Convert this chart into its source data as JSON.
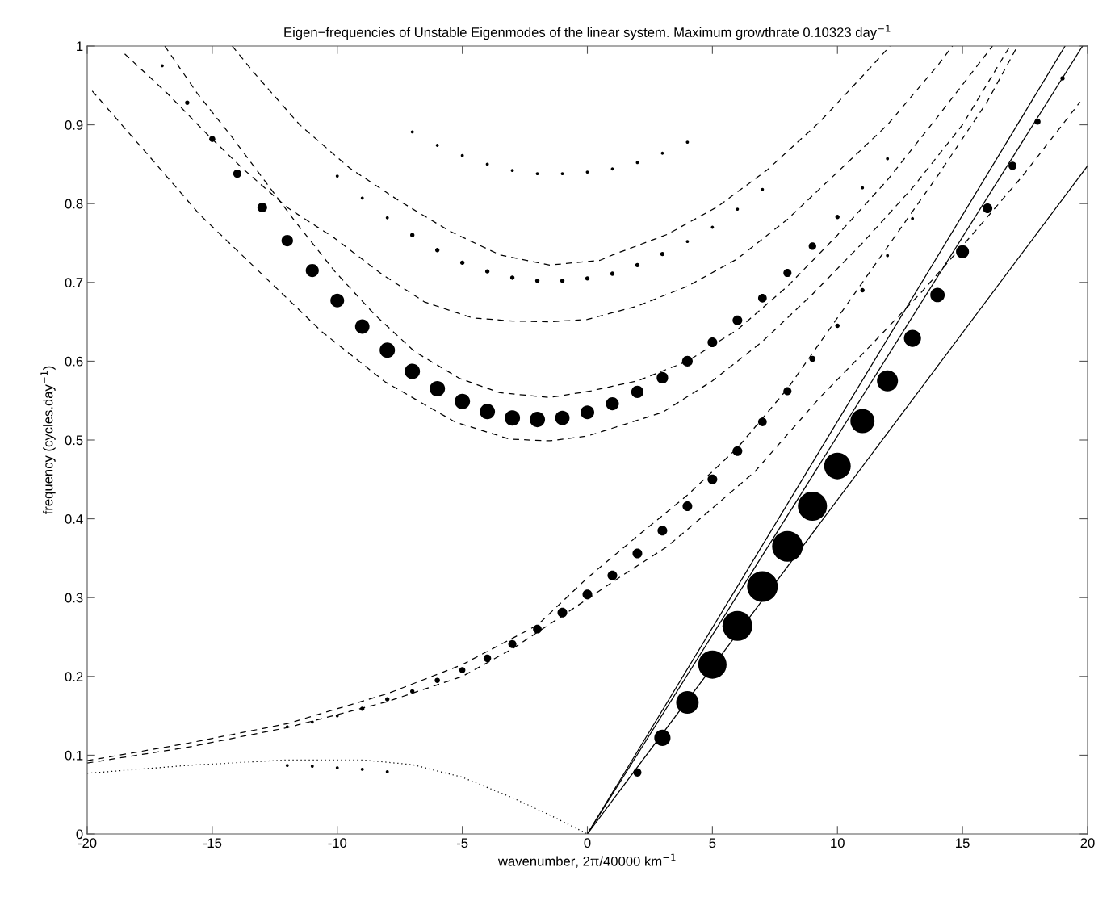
{
  "chart_data": {
    "type": "bubble",
    "title": "Eigen−frequencies of Unstable Eigenmodes of the linear system. Maximum growthrate 0.10323 day$^{−1}$",
    "xlabel": "wavenumber, 2π/40000 km$^{−1}$",
    "ylabel": "frequency (cycles.day$^{−1}$)",
    "xlim": [
      -20,
      20
    ],
    "ylim": [
      0,
      1
    ],
    "xticks": [
      -20,
      -15,
      -10,
      -5,
      0,
      5,
      10,
      15,
      20
    ],
    "yticks": [
      0,
      0.1,
      0.2,
      0.3,
      0.4,
      0.5,
      0.6,
      0.7,
      0.8,
      0.9,
      1
    ],
    "grid": false,
    "series": [
      {
        "type": "line",
        "line_style": "solid",
        "color": "#000000",
        "x": [
          0,
          19.1
        ],
        "values": [
          0,
          1.0
        ]
      },
      {
        "type": "line",
        "line_style": "solid",
        "color": "#000000",
        "x": [
          0,
          19.8
        ],
        "values": [
          0,
          1.0
        ]
      },
      {
        "type": "line",
        "line_style": "solid",
        "color": "#000000",
        "x": [
          0,
          20
        ],
        "values": [
          0,
          0.848
        ]
      },
      {
        "type": "line",
        "line_style": "dashed",
        "color": "#000000",
        "x": [
          -19.8,
          -17.6,
          -15.5,
          -13,
          -10.6,
          -8.1,
          -5.3,
          -3.1,
          -1.5,
          0,
          3,
          5,
          7,
          9,
          11,
          13,
          15,
          16.9
        ],
        "values": [
          0.943,
          0.863,
          0.786,
          0.71,
          0.637,
          0.574,
          0.523,
          0.501,
          0.499,
          0.505,
          0.535,
          0.575,
          0.625,
          0.685,
          0.75,
          0.82,
          0.9,
          1.0
        ]
      },
      {
        "type": "line",
        "line_style": "dashed",
        "color": "#000000",
        "x": [
          -16.9,
          -15.6,
          -14.2,
          -12.9,
          -11.7,
          -10.1,
          -8.5,
          -6.9,
          -5.1,
          -3.5,
          -1.5,
          0.1,
          2,
          4,
          6,
          8,
          10,
          12,
          14,
          16.2
        ],
        "values": [
          1.0,
          0.94,
          0.884,
          0.829,
          0.778,
          0.714,
          0.659,
          0.612,
          0.578,
          0.56,
          0.554,
          0.562,
          0.575,
          0.6,
          0.64,
          0.695,
          0.76,
          0.83,
          0.91,
          1.0
        ]
      },
      {
        "type": "line",
        "line_style": "dashed",
        "color": "#000000",
        "x": [
          -18.5,
          -16.8,
          -15.2,
          -13.8,
          -12,
          -10.1,
          -8.2,
          -6.5,
          -4.6,
          -3,
          -1.5,
          0,
          2,
          4,
          6,
          8,
          10,
          12,
          14,
          14.6
        ],
        "values": [
          0.99,
          0.94,
          0.888,
          0.845,
          0.795,
          0.756,
          0.71,
          0.675,
          0.655,
          0.651,
          0.65,
          0.653,
          0.67,
          0.695,
          0.73,
          0.78,
          0.84,
          0.9,
          0.975,
          1.0
        ]
      },
      {
        "type": "line",
        "line_style": "dashed",
        "color": "#000000",
        "x": [
          -14.2,
          -13.3,
          -11.5,
          -9.5,
          -7.5,
          -5.5,
          -3.5,
          -1.5,
          0.5,
          1.1,
          3.2,
          5.2,
          7.2,
          9.3,
          11.3,
          12.1
        ],
        "values": [
          1.0,
          0.965,
          0.9,
          0.845,
          0.803,
          0.765,
          0.735,
          0.722,
          0.728,
          0.736,
          0.761,
          0.796,
          0.843,
          0.904,
          0.972,
          1.0
        ]
      },
      {
        "type": "line",
        "line_style": "dashed",
        "color": "#000000",
        "x": [
          -20,
          -16,
          -12,
          -8,
          -5,
          -2,
          0,
          2,
          4,
          6,
          8,
          10,
          12,
          14,
          16,
          17.2
        ],
        "values": [
          0.093,
          0.115,
          0.14,
          0.178,
          0.215,
          0.265,
          0.325,
          0.378,
          0.43,
          0.49,
          0.565,
          0.655,
          0.745,
          0.835,
          0.93,
          1.0
        ]
      },
      {
        "type": "line",
        "line_style": "dashed",
        "color": "#000000",
        "x": [
          -20,
          -16,
          -12,
          -8,
          -5,
          -3,
          -0.9,
          1.3,
          3.2,
          4.8,
          6.7,
          9.3,
          11.3,
          13.4,
          15.4,
          17.4,
          19.7
        ],
        "values": [
          0.09,
          0.11,
          0.135,
          0.168,
          0.2,
          0.235,
          0.279,
          0.326,
          0.365,
          0.408,
          0.46,
          0.554,
          0.619,
          0.689,
          0.761,
          0.835,
          0.929
        ]
      },
      {
        "type": "line",
        "line_style": "dotted",
        "color": "#000000",
        "x": [
          -20,
          -16,
          -12,
          -9,
          -7,
          -5,
          -3,
          -1.5,
          0
        ],
        "values": [
          0.077,
          0.087,
          0.094,
          0.094,
          0.088,
          0.072,
          0.046,
          0.024,
          0
        ]
      },
      {
        "marker": "circle",
        "color": "#000000",
        "x": [
          2,
          3,
          4,
          5,
          6,
          7,
          8,
          9,
          10,
          11,
          12,
          13,
          14,
          15,
          16,
          17,
          18,
          19
        ],
        "values": [
          0.078,
          0.122,
          0.167,
          0.215,
          0.264,
          0.314,
          0.365,
          0.416,
          0.467,
          0.524,
          0.575,
          0.629,
          0.684,
          0.739,
          0.794,
          0.848,
          0.904,
          0.959
        ],
        "sizes": [
          0.07,
          0.28,
          0.54,
          0.85,
          0.95,
          1,
          1,
          0.9,
          0.75,
          0.62,
          0.47,
          0.31,
          0.22,
          0.18,
          0.1,
          0.07,
          0.04,
          0.02
        ]
      },
      {
        "marker": "circle",
        "color": "#000000",
        "x": [
          -17,
          -16,
          -15,
          -14,
          -13,
          -12,
          -11,
          -10,
          -9,
          -8,
          -7,
          -6,
          -5,
          -4,
          -3,
          -2,
          -1,
          0,
          1,
          2,
          3,
          4,
          5,
          6,
          7,
          8,
          9,
          10,
          11,
          12
        ],
        "values": [
          0.975,
          0.928,
          0.882,
          0.838,
          0.795,
          0.753,
          0.715,
          0.677,
          0.644,
          0.614,
          0.587,
          0.565,
          0.549,
          0.536,
          0.528,
          0.526,
          0.528,
          0.535,
          0.546,
          0.561,
          0.579,
          0.6,
          0.624,
          0.652,
          0.68,
          0.712,
          0.746,
          0.783,
          0.82,
          0.857
        ],
        "sizes": [
          0.01,
          0.02,
          0.04,
          0.07,
          0.1,
          0.14,
          0.18,
          0.2,
          0.22,
          0.25,
          0.25,
          0.25,
          0.25,
          0.25,
          0.25,
          0.25,
          0.22,
          0.2,
          0.18,
          0.16,
          0.14,
          0.12,
          0.1,
          0.1,
          0.08,
          0.07,
          0.06,
          0.02,
          0.01,
          0.01
        ]
      },
      {
        "marker": "circle",
        "color": "#000000",
        "x": [
          -12,
          -11,
          -10,
          -9,
          -8,
          -7,
          -6,
          -5,
          -4,
          -3,
          -2,
          -1,
          0,
          1,
          2,
          3,
          4,
          5,
          6,
          7,
          8,
          9,
          10,
          11,
          12,
          13
        ],
        "values": [
          0.136,
          0.142,
          0.15,
          0.159,
          0.171,
          0.181,
          0.195,
          0.208,
          0.223,
          0.241,
          0.26,
          0.281,
          0.304,
          0.328,
          0.356,
          0.385,
          0.416,
          0.45,
          0.486,
          0.523,
          0.562,
          0.603,
          0.645,
          0.69,
          0.734,
          0.781
        ],
        "sizes": [
          0.01,
          0.01,
          0.01,
          0.02,
          0.02,
          0.02,
          0.03,
          0.04,
          0.06,
          0.07,
          0.08,
          0.1,
          0.1,
          0.1,
          0.1,
          0.1,
          0.1,
          0.1,
          0.1,
          0.08,
          0.07,
          0.04,
          0.02,
          0.02,
          0.01,
          0.01
        ]
      },
      {
        "marker": "circle",
        "color": "#000000",
        "x": [
          -10,
          -9,
          -8,
          -7,
          -6,
          -5,
          -4,
          -3,
          -2,
          -1,
          0,
          1,
          2,
          3,
          4,
          5,
          6,
          7
        ],
        "values": [
          0.835,
          0.807,
          0.782,
          0.76,
          0.741,
          0.725,
          0.714,
          0.706,
          0.702,
          0.702,
          0.705,
          0.711,
          0.722,
          0.736,
          0.752,
          0.77,
          0.793,
          0.818
        ],
        "sizes": [
          0.01,
          0.01,
          0.01,
          0.02,
          0.02,
          0.02,
          0.02,
          0.02,
          0.02,
          0.02,
          0.02,
          0.02,
          0.02,
          0.02,
          0.01,
          0.01,
          0.01,
          0.01
        ]
      },
      {
        "marker": "circle",
        "color": "#000000",
        "x": [
          -7,
          -6,
          -5,
          -4,
          -3,
          -2,
          -1,
          0,
          1,
          2,
          3,
          4
        ],
        "values": [
          0.891,
          0.874,
          0.861,
          0.85,
          0.842,
          0.838,
          0.838,
          0.84,
          0.844,
          0.852,
          0.864,
          0.878
        ],
        "sizes": [
          0.01,
          0.01,
          0.01,
          0.01,
          0.01,
          0.01,
          0.01,
          0.01,
          0.01,
          0.01,
          0.01,
          0.01
        ]
      },
      {
        "marker": "circle",
        "color": "#000000",
        "x": [
          -12,
          -11,
          -10,
          -9,
          -8
        ],
        "values": [
          0.087,
          0.086,
          0.084,
          0.082,
          0.079
        ],
        "sizes": [
          0.01,
          0.01,
          0.01,
          0.01,
          0.01
        ]
      }
    ]
  }
}
